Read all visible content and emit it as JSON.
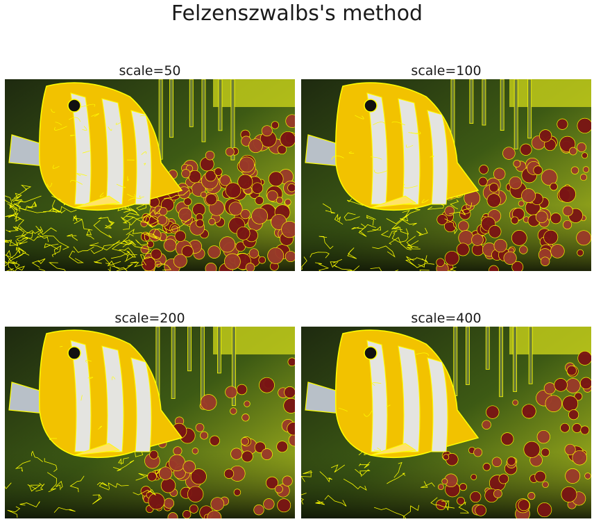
{
  "figure": {
    "title": "Felzenszwalbs's method",
    "panels": [
      {
        "label": "scale=50",
        "scale": 50
      },
      {
        "label": "scale=100",
        "scale": 100
      },
      {
        "label": "scale=200",
        "scale": 200
      },
      {
        "label": "scale=400",
        "scale": 400
      }
    ]
  },
  "colors": {
    "boundary": "#ffff00",
    "fish_yellow": "#f2c200",
    "fish_white": "#e4e4e0",
    "coral_red": "#7a1414",
    "background_green": "#3d5a14"
  }
}
